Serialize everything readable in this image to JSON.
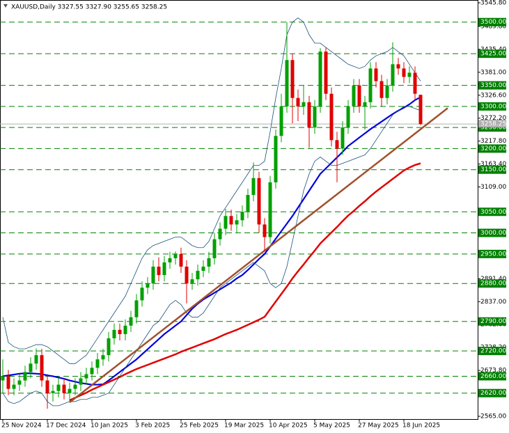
{
  "chart_data": {
    "type": "candlestick",
    "title": "XAUUSD,Daily  3327.55 3327.90 3255.65 3258.25",
    "categories": [
      "25 Nov 2024",
      null,
      null,
      null,
      null,
      null,
      null,
      null,
      "17 Dec 2024",
      null,
      null,
      null,
      null,
      null,
      null,
      null,
      "10 Jan 2025",
      null,
      null,
      null,
      null,
      null,
      null,
      null,
      "3 Feb 2025",
      null,
      null,
      null,
      null,
      null,
      null,
      null,
      "25 Feb 2025",
      null,
      null,
      null,
      null,
      null,
      null,
      null,
      "19 Mar 2025",
      null,
      null,
      null,
      null,
      null,
      null,
      null,
      "10 Apr 2025",
      null,
      null,
      null,
      null,
      null,
      null,
      null,
      "5 May 2025",
      null,
      null,
      null,
      null,
      null,
      null,
      null,
      "27 May 2025",
      null,
      null,
      null,
      null,
      null,
      null,
      null,
      "18 Jun 2025",
      null,
      null,
      null
    ],
    "open": [
      2650,
      2660,
      2630,
      2640,
      2650,
      2670,
      2690,
      2710,
      2650,
      2620,
      2625,
      2640,
      2620,
      2630,
      2640,
      2655,
      2665,
      2680,
      2700,
      2710,
      2750,
      2770,
      2760,
      2780,
      2800,
      2840,
      2870,
      2880,
      2920,
      2900,
      2930,
      2940,
      2950,
      2920,
      2880,
      2890,
      2910,
      2920,
      2940,
      2985,
      3010,
      3040,
      3020,
      3030,
      3050,
      3090,
      3130,
      3020,
      2990,
      3120,
      3230,
      3300,
      3410,
      3320,
      3300,
      3310,
      3250,
      3300,
      3430,
      3330,
      3220,
      3200,
      3250,
      3300,
      3350,
      3300,
      3310,
      3390,
      3360,
      3320,
      3350,
      3400,
      3390,
      3370,
      3380,
      3327.55
    ],
    "high": [
      2700,
      2675,
      2655,
      2665,
      2685,
      2705,
      2726,
      2725,
      2665,
      2640,
      2655,
      2655,
      2645,
      2655,
      2670,
      2680,
      2695,
      2715,
      2725,
      2765,
      2785,
      2785,
      2795,
      2815,
      2855,
      2885,
      2895,
      2935,
      2942,
      2945,
      2955,
      2956,
      2965,
      2935,
      2905,
      2925,
      2935,
      2955,
      3000,
      3025,
      3057,
      3055,
      3045,
      3065,
      3105,
      3167,
      3145,
      3035,
      3135,
      3245,
      3330,
      3500,
      3425,
      3340,
      3350,
      3325,
      3315,
      3438,
      3440,
      3345,
      3240,
      3265,
      3315,
      3365,
      3365,
      3325,
      3405,
      3405,
      3375,
      3365,
      3452,
      3415,
      3405,
      3395,
      3395,
      3327.9
    ],
    "low": [
      2620,
      2615,
      2615,
      2625,
      2635,
      2655,
      2675,
      2635,
      2583,
      2600,
      2610,
      2605,
      2600,
      2615,
      2625,
      2640,
      2650,
      2665,
      2685,
      2695,
      2735,
      2745,
      2745,
      2765,
      2785,
      2825,
      2855,
      2865,
      2885,
      2885,
      2915,
      2925,
      2905,
      2833,
      2865,
      2875,
      2895,
      2905,
      2925,
      2970,
      2995,
      3005,
      3000,
      3015,
      3035,
      3075,
      3000,
      2957,
      2975,
      3105,
      3215,
      3285,
      3260,
      3265,
      3280,
      3202,
      3235,
      3285,
      3315,
      3205,
      3120,
      3185,
      3235,
      3285,
      3285,
      3245,
      3295,
      3345,
      3300,
      3305,
      3335,
      3375,
      3355,
      3355,
      3315,
      3255.65
    ],
    "close": [
      2660,
      2630,
      2640,
      2650,
      2670,
      2690,
      2710,
      2650,
      2620,
      2625,
      2640,
      2620,
      2630,
      2640,
      2655,
      2665,
      2680,
      2700,
      2710,
      2750,
      2770,
      2760,
      2780,
      2800,
      2840,
      2870,
      2880,
      2920,
      2900,
      2930,
      2940,
      2950,
      2920,
      2880,
      2890,
      2910,
      2920,
      2940,
      2985,
      3010,
      3040,
      3020,
      3030,
      3050,
      3090,
      3130,
      3020,
      2990,
      3120,
      3230,
      3300,
      3410,
      3320,
      3300,
      3310,
      3250,
      3300,
      3430,
      3330,
      3220,
      3200,
      3250,
      3300,
      3350,
      3300,
      3310,
      3390,
      3360,
      3320,
      3350,
      3400,
      3390,
      3370,
      3380,
      3330,
      3258.25
    ],
    "up_color": "#00a000",
    "down_color": "#e00000",
    "lines": [
      {
        "color": "#0000dd",
        "width": 2.2,
        "values": [
          2660,
          2662,
          2664,
          2666,
          2667,
          2667,
          2666,
          2665,
          2662,
          2660,
          2657,
          2654,
          2650,
          2647,
          2644,
          2642,
          2640,
          2640,
          2641,
          2650,
          2660,
          2670,
          2680,
          2690,
          2700,
          2712,
          2724,
          2736,
          2748,
          2760,
          2770,
          2780,
          2790,
          2805,
          2820,
          2832,
          2842,
          2850,
          2858,
          2866,
          2874,
          2882,
          2892,
          2900,
          2912,
          2925,
          2938,
          2950,
          2968,
          2986,
          3004,
          3022,
          3040,
          3060,
          3080,
          3100,
          3120,
          3140,
          3153,
          3166,
          3179,
          3192,
          3206,
          3216,
          3226,
          3236,
          3246,
          3255,
          3264,
          3273,
          3282,
          3290,
          3297,
          3305,
          3315,
          3322
        ]
      },
      {
        "color": "#e00000",
        "width": 2.5,
        "values": [
          null,
          null,
          null,
          null,
          null,
          null,
          null,
          null,
          null,
          null,
          null,
          null,
          2603,
          2609,
          2615,
          2621,
          2628,
          2634,
          2640,
          2646,
          2652,
          2658,
          2665,
          2671,
          2677,
          2682,
          2687,
          2692,
          2697,
          2702,
          2707,
          2712,
          2718,
          2723,
          2728,
          2733,
          2738,
          2743,
          2748,
          2754,
          2760,
          2765,
          2770,
          2776,
          2782,
          2788,
          2794,
          2801,
          2819,
          2837,
          2855,
          2873,
          2892,
          2909,
          2925,
          2942,
          2958,
          2975,
          2988,
          3001,
          3014,
          3028,
          3041,
          3052,
          3064,
          3075,
          3087,
          3098,
          3108,
          3118,
          3128,
          3138,
          3148,
          3155,
          3161,
          3165
        ]
      },
      {
        "color": "#1a4f7a",
        "width": 0.8,
        "values": [
          2800,
          2740,
          2730,
          2725,
          2725,
          2730,
          2735,
          2735,
          2730,
          2720,
          2710,
          2700,
          2690,
          2690,
          2700,
          2710,
          2730,
          2750,
          2770,
          2790,
          2810,
          2830,
          2850,
          2880,
          2910,
          2940,
          2960,
          2970,
          2975,
          2980,
          2985,
          2990,
          2990,
          2980,
          2970,
          2965,
          2965,
          2980,
          3010,
          3040,
          3060,
          3080,
          3100,
          3120,
          3140,
          3160,
          3160,
          3170,
          3240,
          3320,
          3390,
          3470,
          3500,
          3510,
          3500,
          3470,
          3450,
          3450,
          3440,
          3430,
          3420,
          3410,
          3400,
          3395,
          3390,
          3395,
          3410,
          3420,
          3425,
          3430,
          3440,
          3430,
          3420,
          3400,
          3380,
          3360
        ]
      },
      {
        "color": "#1a4f7a",
        "width": 0.8,
        "values": [
          2620,
          2600,
          2595,
          2600,
          2610,
          2620,
          2625,
          2620,
          2600,
          2590,
          2590,
          2595,
          2600,
          2600,
          2605,
          2605,
          2610,
          2610,
          2615,
          2620,
          2640,
          2660,
          2680,
          2700,
          2720,
          2740,
          2760,
          2780,
          2790,
          2810,
          2830,
          2840,
          2830,
          2810,
          2800,
          2800,
          2810,
          2830,
          2850,
          2870,
          2880,
          2890,
          2900,
          2910,
          2920,
          2930,
          2920,
          2910,
          2880,
          2870,
          2880,
          2920,
          2980,
          3040,
          3100,
          3140,
          3170,
          3180,
          3170,
          3160,
          3160,
          3165,
          3170,
          3175,
          3180,
          3185,
          3200,
          3220,
          3240,
          3260,
          3280,
          3290,
          3300,
          3300,
          3295,
          3290
        ]
      }
    ],
    "trendline": {
      "from": 2598,
      "to": 3296,
      "color": "#a0522d"
    },
    "levels": [
      {
        "value": 3500,
        "label": "3500.00"
      },
      {
        "value": 3425,
        "label": "3425.00"
      },
      {
        "value": 3350,
        "label": "3350.00"
      },
      {
        "value": 3300,
        "label": "3300.00"
      },
      {
        "value": 3250,
        "label": "3250.00"
      },
      {
        "value": 3200,
        "label": "3200.00"
      },
      {
        "value": 3150,
        "label": "3150.00"
      },
      {
        "value": 3050,
        "label": "3050.00"
      },
      {
        "value": 3000,
        "label": "3000.00"
      },
      {
        "value": 2950,
        "label": "2950.00"
      },
      {
        "value": 2880,
        "label": "2880.00"
      },
      {
        "value": 2790,
        "label": "2790.00"
      },
      {
        "value": 2720,
        "label": "2720.00"
      },
      {
        "value": 2660,
        "label": "2660.00"
      },
      {
        "value": 2620,
        "label": "2620.00"
      }
    ],
    "level_color": "#008000",
    "current_price": {
      "value": 3258.25,
      "label": "3258.25"
    },
    "ylim": [
      2565,
      3545.8
    ],
    "yticks": [
      {
        "value": 3545.8,
        "label": "3545.80"
      },
      {
        "value": 3489.8,
        "label": "3489.80"
      },
      {
        "value": 3435.4,
        "label": "3435.40"
      },
      {
        "value": 3381,
        "label": "3381.00"
      },
      {
        "value": 3326.6,
        "label": "3326.60"
      },
      {
        "value": 3272.2,
        "label": "3272.20"
      },
      {
        "value": 3217.8,
        "label": "3217.80"
      },
      {
        "value": 3163.4,
        "label": "3163.40"
      },
      {
        "value": 3109,
        "label": "3109.00"
      },
      {
        "value": 2891.4,
        "label": "2891.40"
      },
      {
        "value": 2837,
        "label": "2837.00"
      },
      {
        "value": 2782.6,
        "label": "2782.60"
      },
      {
        "value": 2728.2,
        "label": "2728.20"
      },
      {
        "value": 2673.8,
        "label": "2673.80"
      },
      {
        "value": 2565,
        "label": "2565.00"
      }
    ]
  }
}
